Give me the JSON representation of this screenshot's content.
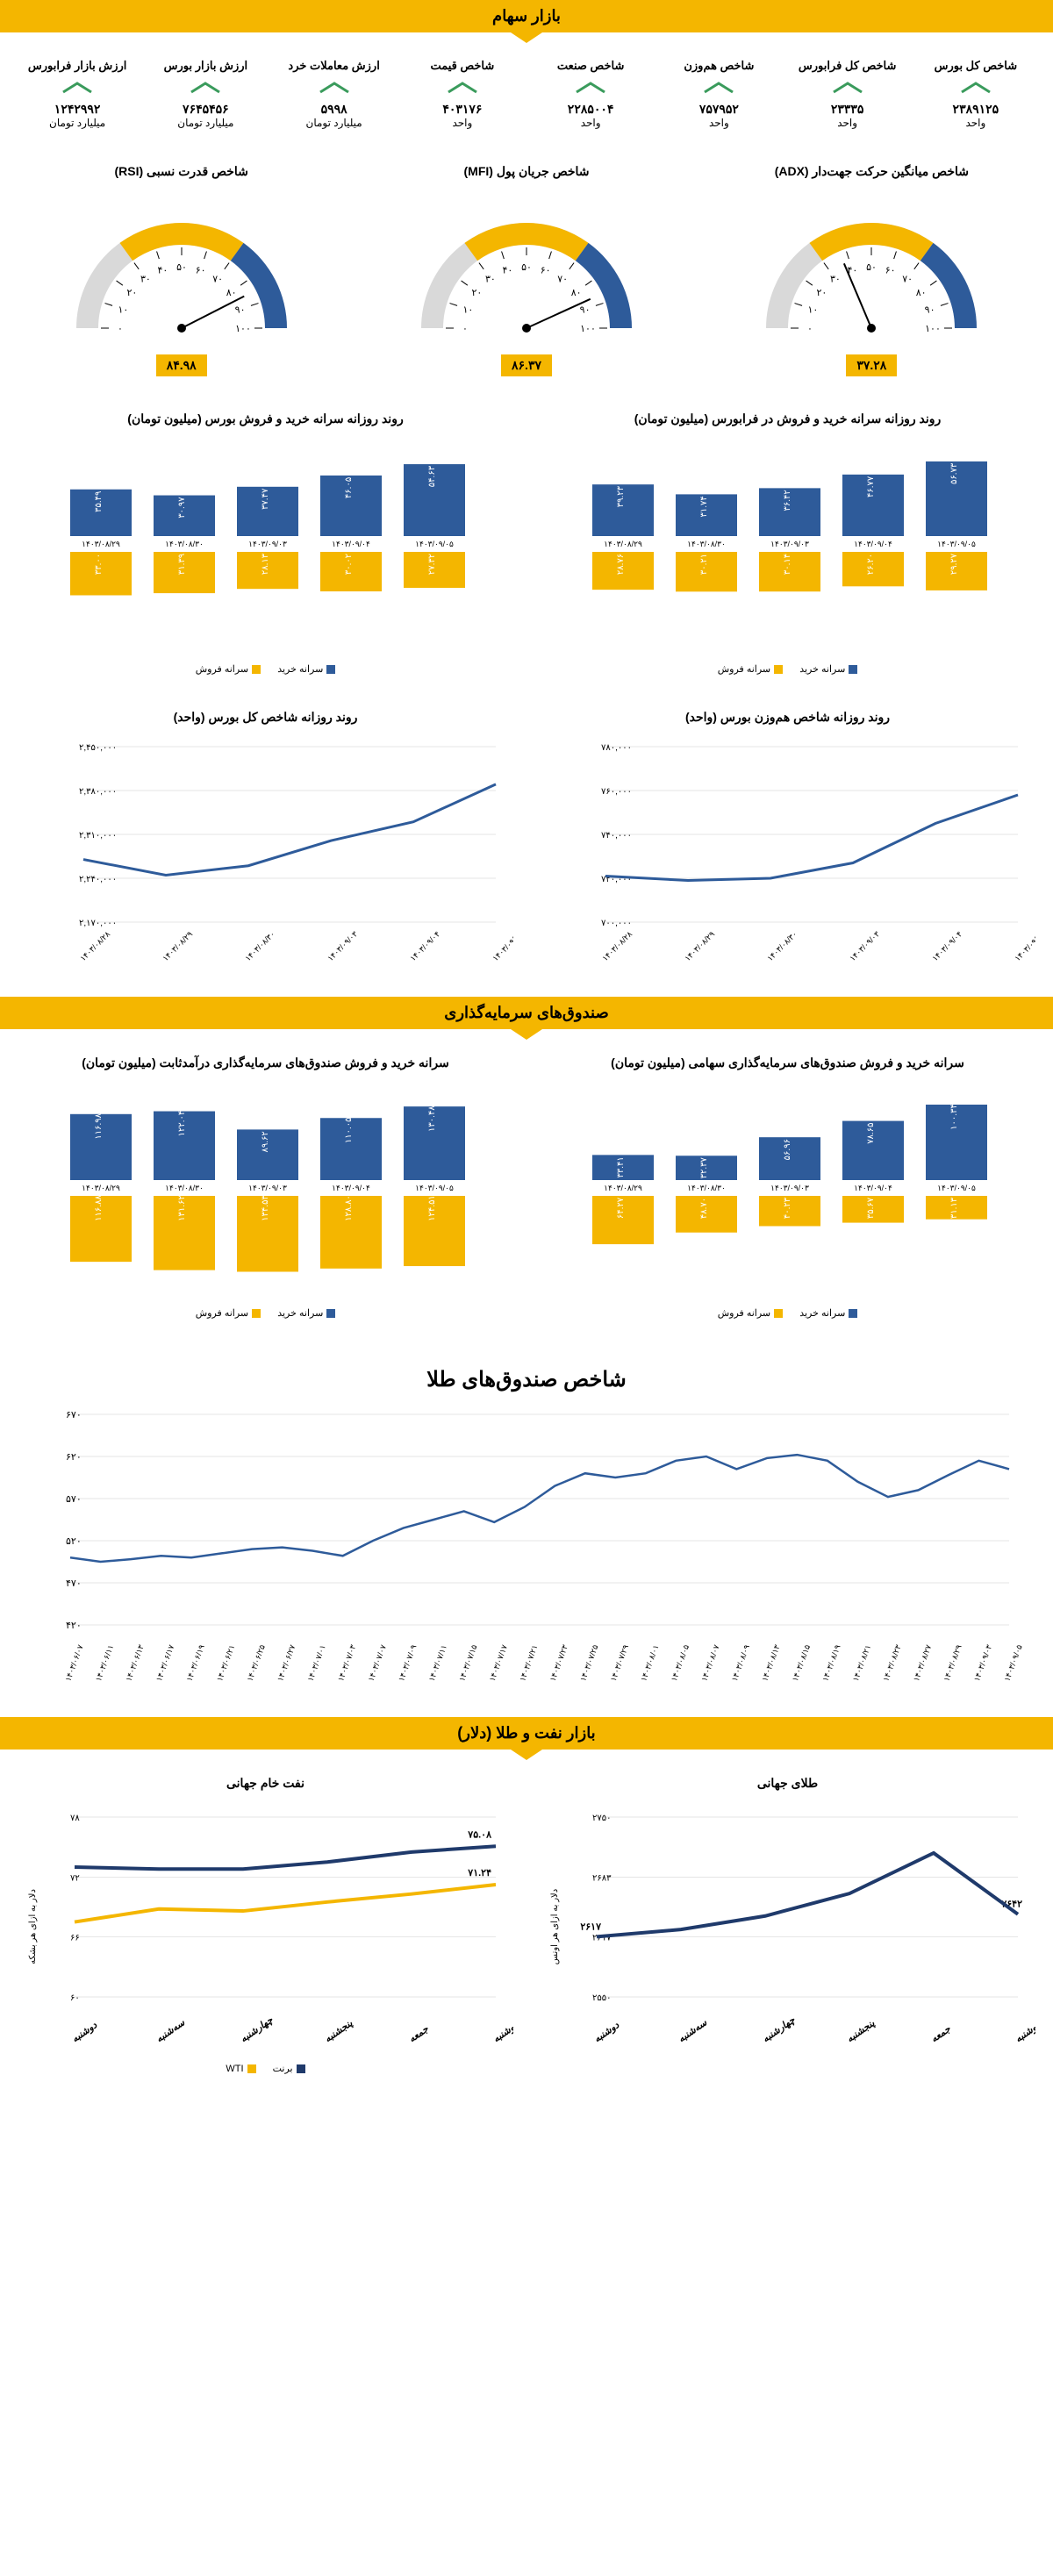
{
  "colors": {
    "accent": "#f4b600",
    "blue": "#2e5b9a",
    "darkblue": "#1f3a6b",
    "green": "#3a9b5c",
    "grid": "#cccccc",
    "text": "#000000"
  },
  "section1": {
    "title": "بازار سهام",
    "metrics": [
      {
        "label": "شاخص کل بورس",
        "value": "۲۳۸۹۱۲۵",
        "unit": "واحد"
      },
      {
        "label": "شاخص کل فرابورس",
        "value": "۲۳۳۳۵",
        "unit": "واحد"
      },
      {
        "label": "شاخص هم‌وزن",
        "value": "۷۵۷۹۵۲",
        "unit": "واحد"
      },
      {
        "label": "شاخص صنعت",
        "value": "۲۲۸۵۰۰۴",
        "unit": "واحد"
      },
      {
        "label": "شاخص قیمت",
        "value": "۴۰۳۱۷۶",
        "unit": "واحد"
      },
      {
        "label": "ارزش معاملات خرد",
        "value": "۵۹۹۸",
        "unit": "میلیارد تومان"
      },
      {
        "label": "ارزش بازار بورس",
        "value": "۷۶۴۵۴۵۶",
        "unit": "میلیارد تومان"
      },
      {
        "label": "ارزش بازار فرابورس",
        "value": "۱۲۴۲۹۹۲",
        "unit": "میلیارد تومان"
      }
    ]
  },
  "gauges": [
    {
      "title": "شاخص میانگین حرکت جهت‌دار (ADX)",
      "value": "۳۷.۲۸",
      "needle": 37.28
    },
    {
      "title": "شاخص جریان پول (MFI)",
      "value": "۸۶.۳۷",
      "needle": 86.37
    },
    {
      "title": "شاخص قدرت نسبی (RSI)",
      "value": "۸۴.۹۸",
      "needle": 84.98
    }
  ],
  "buysell_farabourse": {
    "title": "روند روزانه سرانه خرید و فروش در فرابورس (میلیون تومان)",
    "dates": [
      "۱۴۰۳/۰۸/۲۹",
      "۱۴۰۳/۰۸/۳۰",
      "۱۴۰۳/۰۹/۰۳",
      "۱۴۰۳/۰۹/۰۴",
      "۱۴۰۳/۰۹/۰۵"
    ],
    "buy": [
      39.23,
      31.74,
      36.42,
      46.77,
      56.73
    ],
    "sell": [
      28.76,
      30.21,
      30.14,
      26.2,
      29.27
    ],
    "ymax": 60
  },
  "buysell_bourse": {
    "title": "روند روزانه سرانه خرید و فروش بورس (میلیون تومان)",
    "dates": [
      "۱۴۰۳/۰۸/۲۹",
      "۱۴۰۳/۰۸/۳۰",
      "۱۴۰۳/۰۹/۰۳",
      "۱۴۰۳/۰۹/۰۴",
      "۱۴۰۳/۰۹/۰۵"
    ],
    "buy": [
      35.49,
      30.97,
      37.47,
      46.05,
      54.63
    ],
    "sell": [
      33.0,
      31.39,
      28.13,
      30.02,
      27.32
    ],
    "ymax": 60
  },
  "legend_buysell": {
    "buy": "سرانه خرید",
    "sell": "سرانه فروش"
  },
  "index_hamvazn": {
    "title": "روند روزانه شاخص هم‌وزن بورس (واحد)",
    "dates": [
      "۱۴۰۳/۰۸/۲۸",
      "۱۴۰۳/۰۸/۲۹",
      "۱۴۰۳/۰۸/۳۰",
      "۱۴۰۳/۰۹/۰۳",
      "۱۴۰۳/۰۹/۰۴",
      "۱۴۰۳/۰۹/۰۵"
    ],
    "values": [
      721000,
      719000,
      720000,
      727000,
      745000,
      758000
    ],
    "yticks": [
      700000,
      720000,
      740000,
      760000,
      780000
    ],
    "yticklabels": [
      "۷۰۰,۰۰۰",
      "۷۲۰,۰۰۰",
      "۷۴۰,۰۰۰",
      "۷۶۰,۰۰۰",
      "۷۸۰,۰۰۰"
    ]
  },
  "index_kol": {
    "title": "روند روزانه شاخص کل بورس (واحد)",
    "dates": [
      "۱۴۰۳/۰۸/۲۸",
      "۱۴۰۳/۰۸/۲۹",
      "۱۴۰۳/۰۸/۳۰",
      "۱۴۰۳/۰۹/۰۳",
      "۱۴۰۳/۰۹/۰۴",
      "۱۴۰۳/۰۹/۰۵"
    ],
    "values": [
      2270000,
      2245000,
      2260000,
      2300000,
      2330000,
      2390000
    ],
    "yticks": [
      2170000,
      2240000,
      2310000,
      2380000,
      2450000
    ],
    "yticklabels": [
      "۲,۱۷۰,۰۰۰",
      "۲,۲۴۰,۰۰۰",
      "۲,۳۱۰,۰۰۰",
      "۲,۳۸۰,۰۰۰",
      "۲,۴۵۰,۰۰۰"
    ]
  },
  "section2": {
    "title": "صندوق‌های سرمایه‌گذاری"
  },
  "fund_saham": {
    "title": "سرانه خرید و فروش صندوق‌های سرمایه‌گذاری سهامی (میلیون تومان)",
    "dates": [
      "۱۴۰۳/۰۸/۲۹",
      "۱۴۰۳/۰۸/۳۰",
      "۱۴۰۳/۰۹/۰۳",
      "۱۴۰۳/۰۹/۰۴",
      "۱۴۰۳/۰۹/۰۵"
    ],
    "buy": [
      33.41,
      32.37,
      56.96,
      78.65,
      100.34
    ],
    "sell": [
      64.27,
      48.7,
      40.23,
      35.67,
      31.13
    ],
    "ymax": 105
  },
  "fund_fixed": {
    "title": "سرانه خرید و فروش صندوق‌های سرمایه‌گذاری درآمدثابت (میلیون تومان)",
    "dates": [
      "۱۴۰۳/۰۸/۲۹",
      "۱۴۰۳/۰۸/۳۰",
      "۱۴۰۳/۰۹/۰۳",
      "۱۴۰۳/۰۹/۰۴",
      "۱۴۰۳/۰۹/۰۵"
    ],
    "buy": [
      116.98,
      122.04,
      89.62,
      110.05,
      130.48
    ],
    "sell": [
      116.88,
      131.62,
      134.53,
      128.8,
      124.51
    ],
    "ymax": 140
  },
  "gold_index": {
    "title": "شاخص صندوق‌های طلا",
    "yticks": [
      420,
      470,
      520,
      570,
      620,
      670
    ],
    "yticklabels": [
      "۴۲۰",
      "۴۷۰",
      "۵۲۰",
      "۵۷۰",
      "۶۲۰",
      "۶۷۰"
    ],
    "dates": [
      "۱۴۰۳/۰۶/۰۷",
      "۱۴۰۳/۰۶/۱۱",
      "۱۴۰۳/۰۶/۱۳",
      "۱۴۰۳/۰۶/۱۷",
      "۱۴۰۳/۰۶/۱۹",
      "۱۴۰۳/۰۶/۲۱",
      "۱۴۰۳/۰۶/۲۵",
      "۱۴۰۳/۰۶/۲۷",
      "۱۴۰۳/۰۷/۰۱",
      "۱۴۰۳/۰۷/۰۳",
      "۱۴۰۳/۰۷/۰۷",
      "۱۴۰۳/۰۷/۰۹",
      "۱۴۰۳/۰۷/۱۱",
      "۱۴۰۳/۰۷/۱۵",
      "۱۴۰۳/۰۷/۱۷",
      "۱۴۰۳/۰۷/۲۱",
      "۱۴۰۳/۰۷/۲۳",
      "۱۴۰۳/۰۷/۲۵",
      "۱۴۰۳/۰۷/۲۹",
      "۱۴۰۳/۰۸/۰۱",
      "۱۴۰۳/۰۸/۰۵",
      "۱۴۰۳/۰۸/۰۷",
      "۱۴۰۳/۰۸/۰۹",
      "۱۴۰۳/۰۸/۱۳",
      "۱۴۰۳/۰۸/۱۵",
      "۱۴۰۳/۰۸/۱۹",
      "۱۴۰۳/۰۸/۲۱",
      "۱۴۰۳/۰۸/۲۳",
      "۱۴۰۳/۰۸/۲۷",
      "۱۴۰۳/۰۸/۲۹",
      "۱۴۰۳/۰۹/۰۳",
      "۱۴۰۳/۰۹/۰۵"
    ],
    "values": [
      500,
      495,
      498,
      502,
      500,
      505,
      510,
      512,
      508,
      502,
      520,
      535,
      545,
      555,
      542,
      560,
      585,
      600,
      595,
      600,
      615,
      620,
      605,
      618,
      622,
      615,
      590,
      572,
      580,
      598,
      615,
      605
    ]
  },
  "section3": {
    "title": "بازار نفت و طلا (دلار)"
  },
  "gold_world": {
    "title": "طلای جهانی",
    "ylabel": "دلار به ازای هر اونس",
    "dates": [
      "دوشنبه",
      "سه‌شنبه",
      "چهارشنبه",
      "پنجشنبه",
      "جمعه",
      "دوشنبه"
    ],
    "values": [
      2617,
      2625,
      2640,
      2665,
      2710,
      2642
    ],
    "yticks": [
      2550,
      2617,
      2683,
      2750
    ],
    "yticklabels": [
      "۲۵۵۰",
      "۲۶۱۷",
      "۲۶۸۳",
      "۲۷۵۰"
    ],
    "point_labels": {
      "0": "۲۶۱۷",
      "5": "۲۶۴۲"
    }
  },
  "oil_world": {
    "title": "نفت خام جهانی",
    "ylabel": "دلار به ازای هر بشکه",
    "dates": [
      "دوشنبه",
      "سه‌شنبه",
      "چهارشنبه",
      "پنجشنبه",
      "جمعه",
      "دوشنبه"
    ],
    "brent": [
      73.0,
      72.8,
      72.8,
      73.5,
      74.5,
      75.08
    ],
    "wti": [
      67.5,
      68.8,
      68.6,
      69.5,
      70.3,
      71.24
    ],
    "yticks": [
      60,
      66,
      72,
      78
    ],
    "yticklabels": [
      "۶۰",
      "۶۶",
      "۷۲",
      "۷۸"
    ],
    "legend": {
      "brent": "برنت",
      "wti": "WTI"
    },
    "point_labels": {
      "brent_5": "۷۵.۰۸",
      "wti_5": "۷۱.۲۴"
    }
  }
}
